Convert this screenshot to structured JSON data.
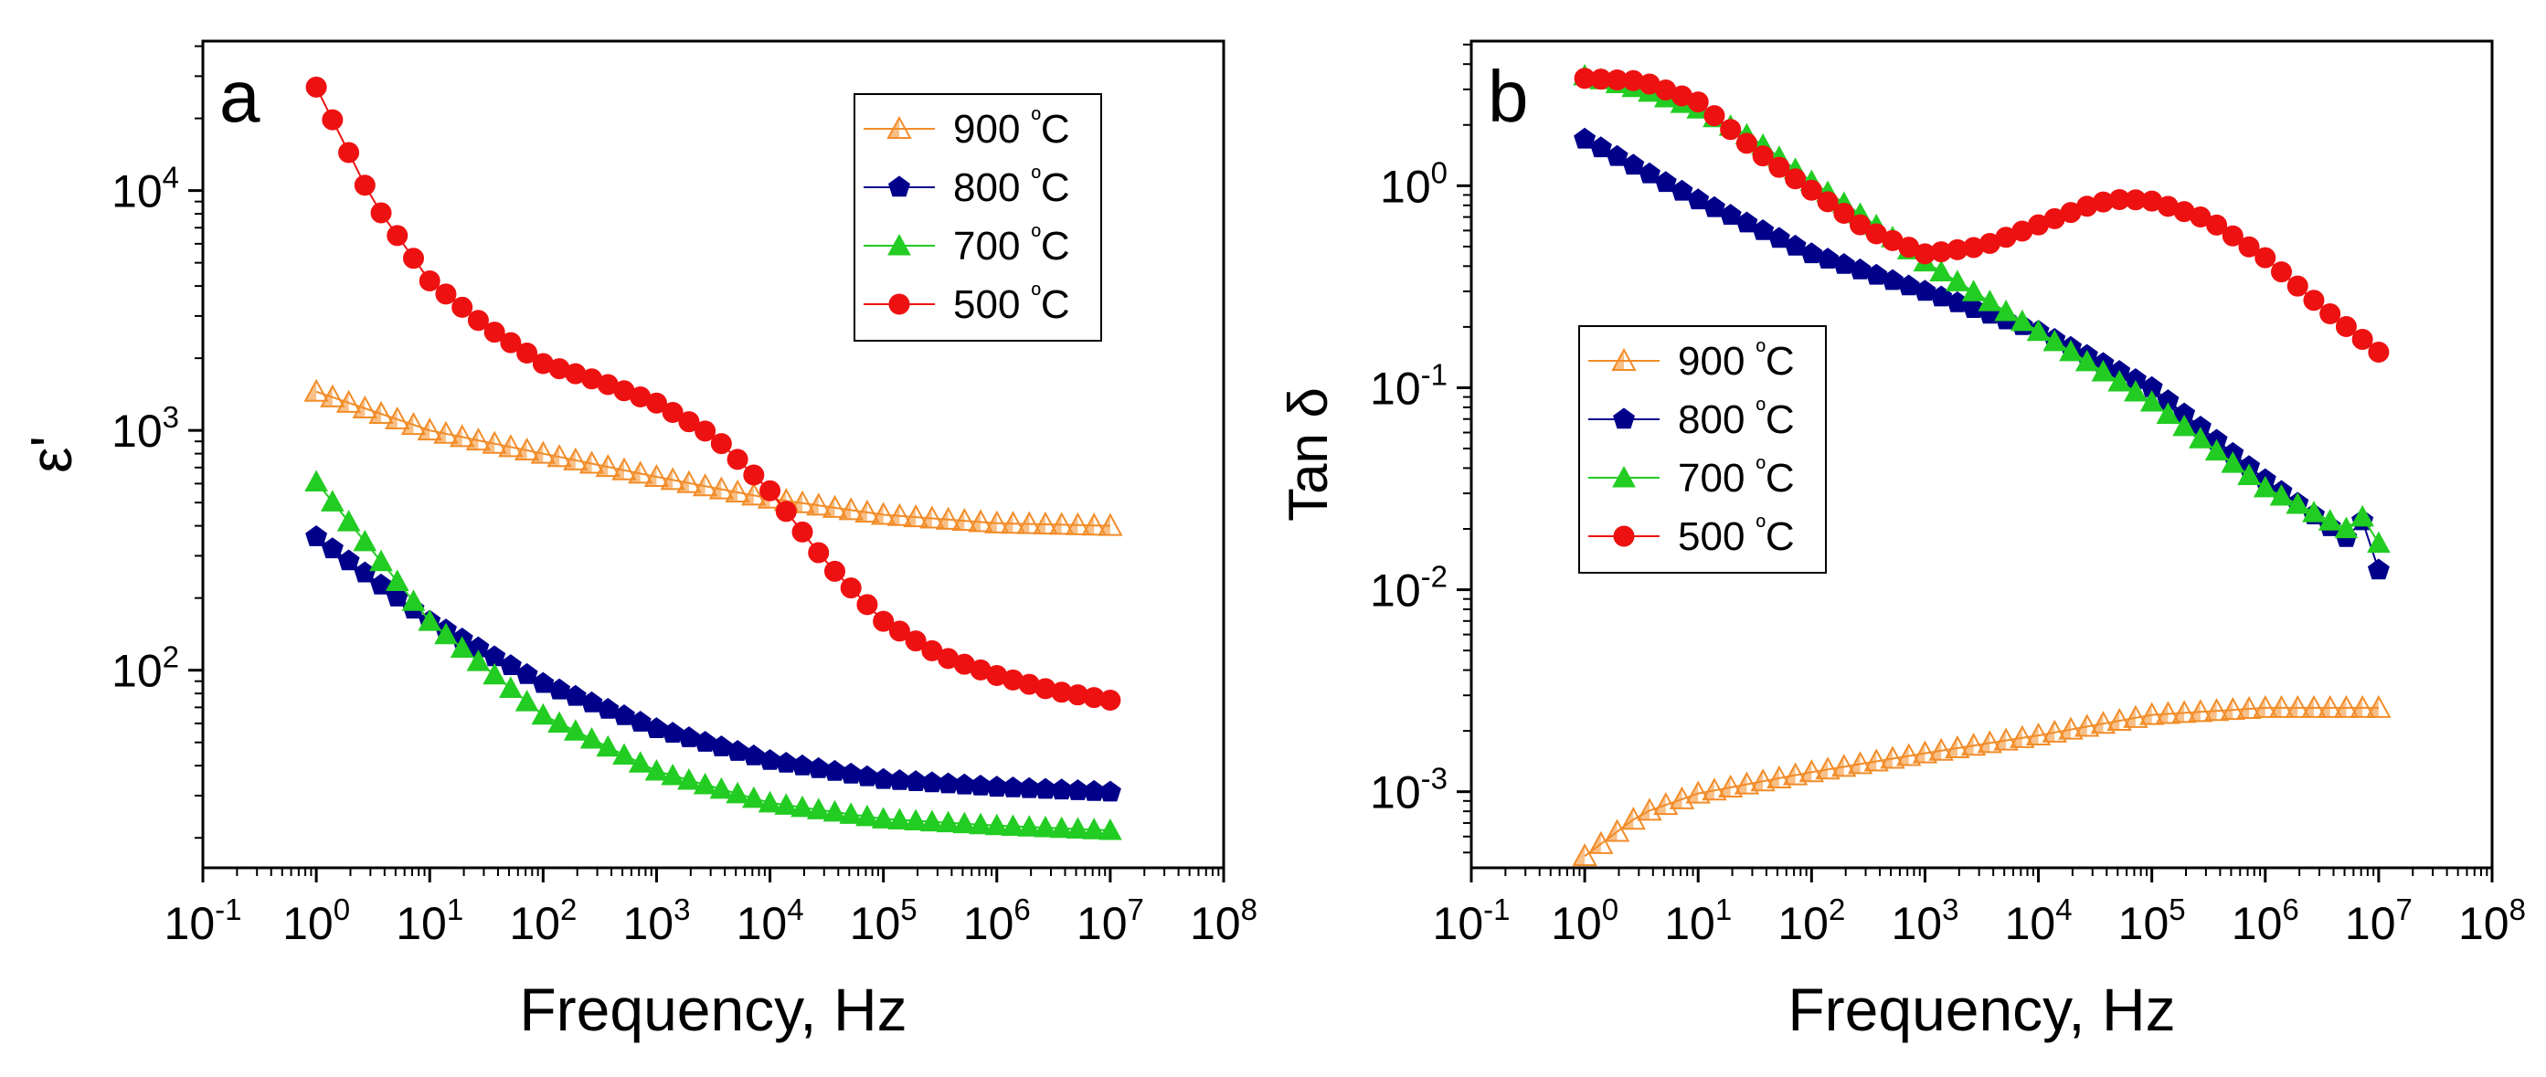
{
  "chart_data": [
    {
      "type": "scatter",
      "panel_label": "a",
      "xlabel": "Frequency, Hz",
      "ylabel": "ε'",
      "xscale": "log",
      "yscale": "log",
      "xlim": [
        0.1,
        100000000
      ],
      "ylim": [
        15,
        42000
      ],
      "x_ticks": [
        {
          "base": "10",
          "exp": "-1"
        },
        {
          "base": "10",
          "exp": "0"
        },
        {
          "base": "10",
          "exp": "1"
        },
        {
          "base": "10",
          "exp": "2"
        },
        {
          "base": "10",
          "exp": "3"
        },
        {
          "base": "10",
          "exp": "4"
        },
        {
          "base": "10",
          "exp": "5"
        },
        {
          "base": "10",
          "exp": "6"
        },
        {
          "base": "10",
          "exp": "7"
        },
        {
          "base": "10",
          "exp": "8"
        }
      ],
      "y_ticks": [
        {
          "base": "10",
          "exp": "2"
        },
        {
          "base": "10",
          "exp": "3"
        },
        {
          "base": "10",
          "exp": "4"
        }
      ],
      "legend_position": "top-right",
      "series": [
        {
          "name": "900 ºC",
          "label": "900 ",
          "unit": "ºC",
          "color": "#F28C28",
          "marker": "open-triangle",
          "logx": [
            0,
            7
          ],
          "points_per_decade": 7,
          "anchors": [
            [
              0,
              1450
            ],
            [
              1,
              1000
            ],
            [
              2,
              800
            ],
            [
              3,
              640
            ],
            [
              4,
              520
            ],
            [
              5,
              445
            ],
            [
              6,
              410
            ],
            [
              7,
              400
            ]
          ]
        },
        {
          "name": "800 ºC",
          "label": "800 ",
          "unit": "ºC",
          "color": "#00008B",
          "marker": "pentagon",
          "logx": [
            0,
            7
          ],
          "points_per_decade": 7,
          "anchors": [
            [
              0,
              360
            ],
            [
              1,
              160
            ],
            [
              2,
              88
            ],
            [
              3,
              57
            ],
            [
              4,
              42
            ],
            [
              5,
              35
            ],
            [
              6,
              32.5
            ],
            [
              7,
              31
            ]
          ]
        },
        {
          "name": "700 ºC",
          "label": "700 ",
          "unit": "ºC",
          "color": "#22CC22",
          "marker": "triangle",
          "logx": [
            0,
            7
          ],
          "points_per_decade": 7,
          "anchors": [
            [
              0,
              610
            ],
            [
              1,
              160
            ],
            [
              2,
              65
            ],
            [
              3,
              38
            ],
            [
              4,
              28
            ],
            [
              5,
              24
            ],
            [
              6,
              22.5
            ],
            [
              7,
              21.5
            ]
          ]
        },
        {
          "name": "500 ºC",
          "label": "500 ",
          "unit": "ºC",
          "color": "#EE1111",
          "marker": "circle",
          "logx": [
            0,
            7
          ],
          "points_per_decade": 7,
          "anchors": [
            [
              0,
              27000
            ],
            [
              0.5,
              9000
            ],
            [
              1,
              4200
            ],
            [
              1.5,
              2700
            ],
            [
              2,
              1900
            ],
            [
              2.5,
              1600
            ],
            [
              3,
              1300
            ],
            [
              3.5,
              950
            ],
            [
              4,
              560
            ],
            [
              4.5,
              280
            ],
            [
              5,
              160
            ],
            [
              5.5,
              115
            ],
            [
              6,
              95
            ],
            [
              6.5,
              82
            ],
            [
              7,
              75
            ]
          ]
        }
      ]
    },
    {
      "type": "scatter",
      "panel_label": "b",
      "xlabel": "Frequency, Hz",
      "ylabel": "Tan δ",
      "xscale": "log",
      "yscale": "log",
      "xlim": [
        0.1,
        100000000
      ],
      "ylim": [
        0.00042,
        5.2
      ],
      "x_ticks": [
        {
          "base": "10",
          "exp": "-1"
        },
        {
          "base": "10",
          "exp": "0"
        },
        {
          "base": "10",
          "exp": "1"
        },
        {
          "base": "10",
          "exp": "2"
        },
        {
          "base": "10",
          "exp": "3"
        },
        {
          "base": "10",
          "exp": "4"
        },
        {
          "base": "10",
          "exp": "5"
        },
        {
          "base": "10",
          "exp": "6"
        },
        {
          "base": "10",
          "exp": "7"
        },
        {
          "base": "10",
          "exp": "8"
        }
      ],
      "y_ticks": [
        {
          "base": "10",
          "exp": "-3"
        },
        {
          "base": "10",
          "exp": "-2"
        },
        {
          "base": "10",
          "exp": "-1"
        },
        {
          "base": "10",
          "exp": "0"
        }
      ],
      "legend_position": "middle-left",
      "series": [
        {
          "name": "900 ºC",
          "label": "900 ",
          "unit": "ºC",
          "color": "#F28C28",
          "marker": "open-triangle",
          "logx": [
            0,
            7
          ],
          "points_per_decade": 7,
          "anchors": [
            [
              0,
              0.00048
            ],
            [
              0.5,
              0.00078
            ],
            [
              1,
              0.00098
            ],
            [
              2,
              0.00125
            ],
            [
              3,
              0.00155
            ],
            [
              4,
              0.0019
            ],
            [
              5,
              0.0024
            ],
            [
              6,
              0.0026
            ],
            [
              7,
              0.0026
            ]
          ]
        },
        {
          "name": "800 ºC",
          "label": "800 ",
          "unit": "ºC",
          "color": "#00008B",
          "marker": "pentagon",
          "logx": [
            0,
            7
          ],
          "points_per_decade": 7,
          "anchors": [
            [
              0,
              1.7
            ],
            [
              1,
              0.85
            ],
            [
              2,
              0.46
            ],
            [
              3,
              0.3
            ],
            [
              4,
              0.19
            ],
            [
              5,
              0.1
            ],
            [
              6,
              0.035
            ],
            [
              6.71,
              0.018
            ],
            [
              6.86,
              0.022
            ],
            [
              7,
              0.0125
            ]
          ]
        },
        {
          "name": "700 ºC",
          "label": "700 ",
          "unit": "ºC",
          "color": "#22CC22",
          "marker": "triangle",
          "logx": [
            0,
            7
          ],
          "points_per_decade": 7,
          "anchors": [
            [
              0,
              3.5
            ],
            [
              0.5,
              3.0
            ],
            [
              1,
              2.4
            ],
            [
              1.5,
              1.7
            ],
            [
              2,
              1.05
            ],
            [
              2.5,
              0.68
            ],
            [
              3,
              0.42
            ],
            [
              4,
              0.19
            ],
            [
              5,
              0.085
            ],
            [
              6,
              0.032
            ],
            [
              6.71,
              0.02
            ],
            [
              6.86,
              0.023
            ],
            [
              7,
              0.017
            ]
          ]
        },
        {
          "name": "500 ºC",
          "label": "500 ",
          "unit": "ºC",
          "color": "#EE1111",
          "marker": "circle",
          "logx": [
            0,
            7
          ],
          "points_per_decade": 7,
          "anchors": [
            [
              0,
              3.4
            ],
            [
              0.5,
              3.3
            ],
            [
              1,
              2.6
            ],
            [
              1.5,
              1.5
            ],
            [
              2,
              0.95
            ],
            [
              2.5,
              0.6
            ],
            [
              3,
              0.46
            ],
            [
              3.5,
              0.5
            ],
            [
              4,
              0.64
            ],
            [
              4.5,
              0.82
            ],
            [
              4.75,
              0.86
            ],
            [
              5,
              0.84
            ],
            [
              5.5,
              0.68
            ],
            [
              6,
              0.44
            ],
            [
              6.5,
              0.25
            ],
            [
              7,
              0.15
            ]
          ]
        }
      ]
    }
  ]
}
